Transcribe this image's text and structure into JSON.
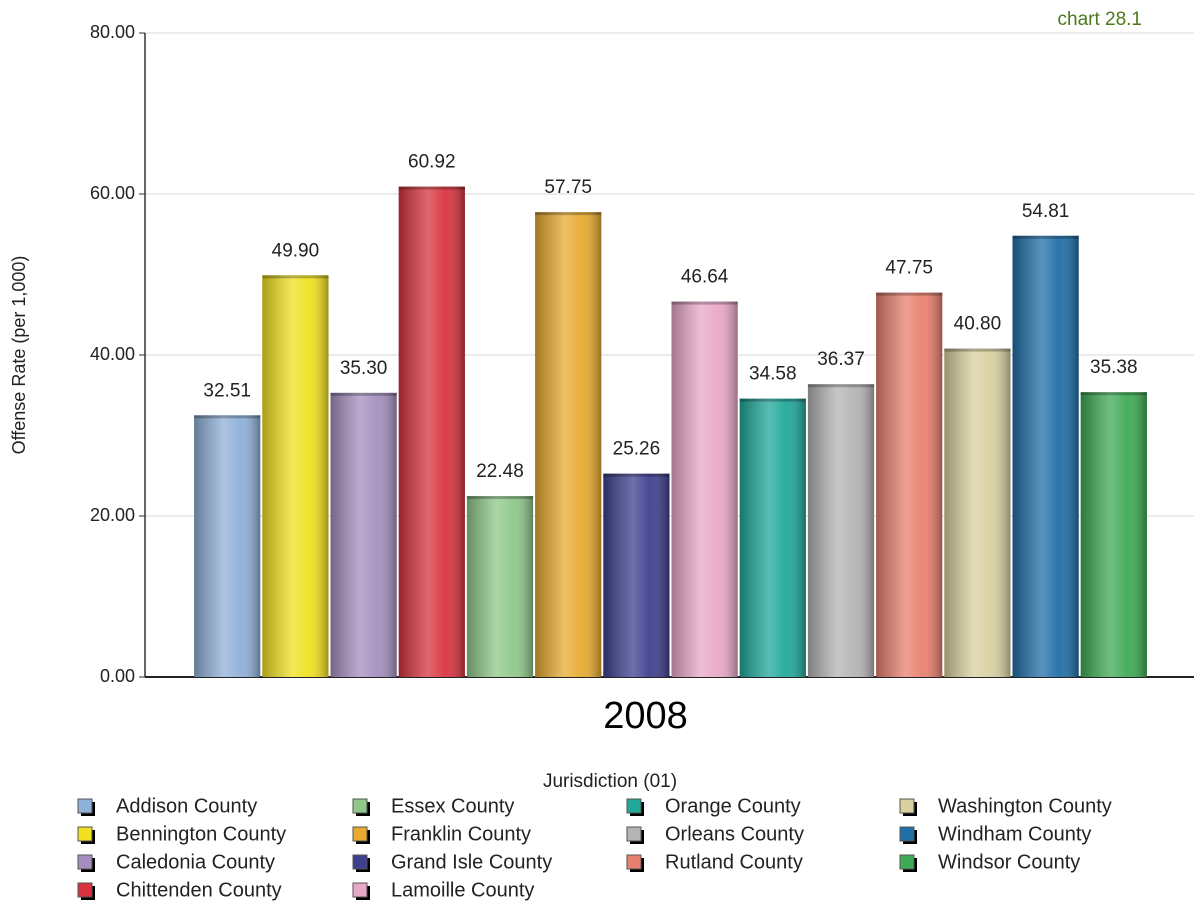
{
  "chart_data": {
    "type": "bar",
    "note_label": "chart 28.1",
    "y_label": "Offense Rate (per 1,000)",
    "legend_title": "Jurisdiction (01)",
    "categories": [
      "2008"
    ],
    "ylim": [
      0,
      80
    ],
    "yticks": [
      {
        "value": 0,
        "label": "0.00"
      },
      {
        "value": 20,
        "label": "20.00"
      },
      {
        "value": 40,
        "label": "40.00"
      },
      {
        "value": 60,
        "label": "60.00"
      },
      {
        "value": 80,
        "label": "80.00"
      }
    ],
    "grid": true,
    "series": [
      {
        "name": "Addison County",
        "color": "#8fb0d8",
        "values": [
          32.51
        ],
        "value_labels": [
          "32.51"
        ]
      },
      {
        "name": "Bennington County",
        "color": "#f0e020",
        "values": [
          49.9
        ],
        "value_labels": [
          "49.90"
        ]
      },
      {
        "name": "Caledonia County",
        "color": "#a58fc0",
        "values": [
          35.3
        ],
        "value_labels": [
          "35.30"
        ]
      },
      {
        "name": "Chittenden County",
        "color": "#d8333f",
        "values": [
          60.92
        ],
        "value_labels": [
          "60.92"
        ]
      },
      {
        "name": "Essex County",
        "color": "#8fc88a",
        "values": [
          22.48
        ],
        "value_labels": [
          "22.48"
        ]
      },
      {
        "name": "Franklin County",
        "color": "#e8aa30",
        "values": [
          57.75
        ],
        "value_labels": [
          "57.75"
        ]
      },
      {
        "name": "Grand Isle County",
        "color": "#3f3f90",
        "values": [
          25.26
        ],
        "value_labels": [
          "25.26"
        ]
      },
      {
        "name": "Lamoille County",
        "color": "#e8a8c8",
        "values": [
          46.64
        ],
        "value_labels": [
          "46.64"
        ]
      },
      {
        "name": "Orange County",
        "color": "#20a89a",
        "values": [
          34.58
        ],
        "value_labels": [
          "34.58"
        ]
      },
      {
        "name": "Orleans County",
        "color": "#b4b4b4",
        "values": [
          36.37
        ],
        "value_labels": [
          "36.37"
        ]
      },
      {
        "name": "Rutland County",
        "color": "#e88070",
        "values": [
          47.75
        ],
        "value_labels": [
          "47.75"
        ]
      },
      {
        "name": "Washington County",
        "color": "#d8d0a0",
        "values": [
          40.8
        ],
        "value_labels": [
          "40.80"
        ]
      },
      {
        "name": "Windham County",
        "color": "#1f6fa8",
        "values": [
          54.81
        ],
        "value_labels": [
          "54.81"
        ]
      },
      {
        "name": "Windsor County",
        "color": "#3faa55",
        "values": [
          35.38
        ],
        "value_labels": [
          "35.38"
        ]
      }
    ]
  }
}
